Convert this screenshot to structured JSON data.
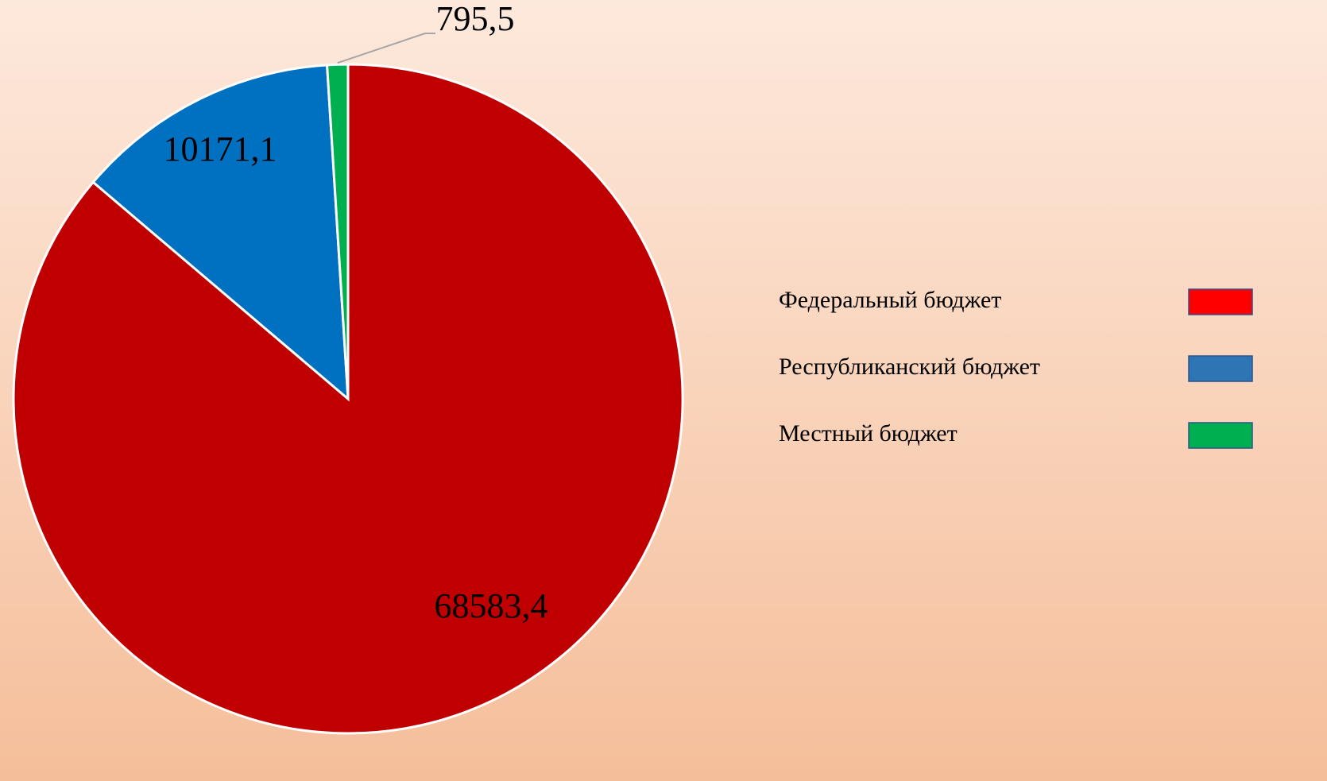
{
  "chart_data": {
    "type": "pie",
    "categories": [
      "Федеральный бюджет",
      "Республиканский бюджет",
      "Местный бюджет"
    ],
    "values": [
      68583.4,
      10171.1,
      795.5
    ],
    "value_labels": [
      "68583,4",
      "10171,1",
      "795,5"
    ],
    "colors": [
      "#c00000",
      "#0070c0",
      "#00b050"
    ],
    "legend_colors": [
      "#ff0000",
      "#2e75b6",
      "#00b050"
    ],
    "legend": "right"
  }
}
